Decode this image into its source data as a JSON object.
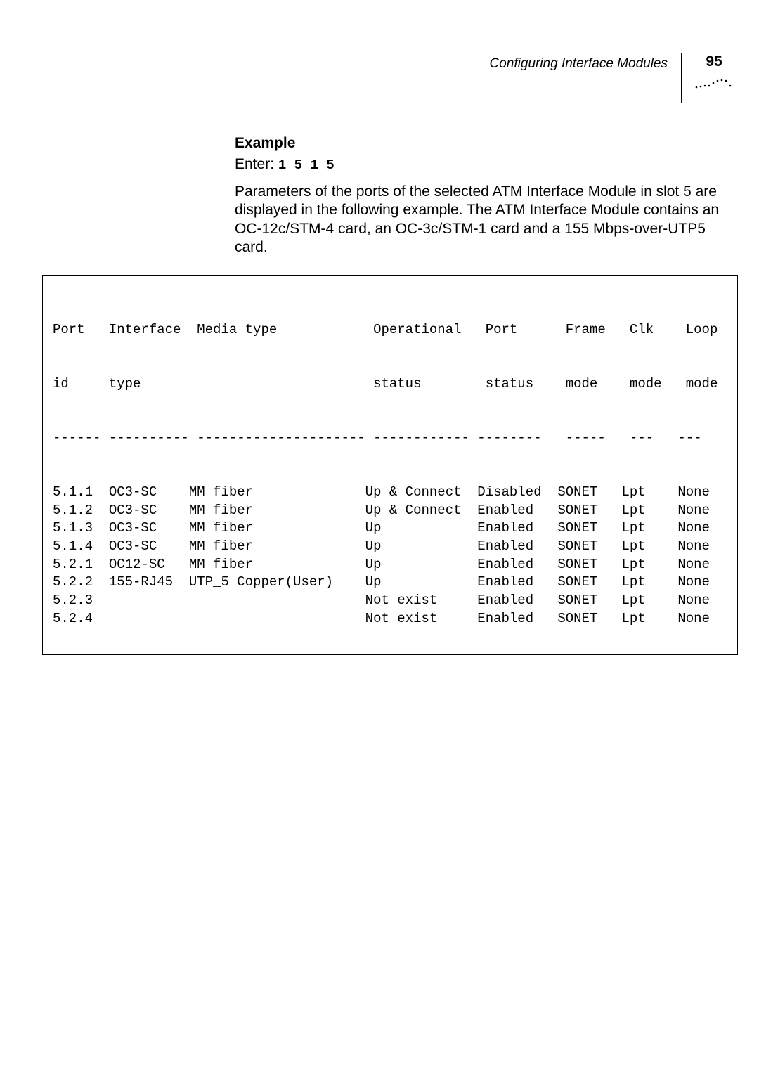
{
  "header": {
    "title": "Configuring Interface Modules",
    "page_number": "95"
  },
  "section": {
    "heading": "Example",
    "enter_label": "Enter: ",
    "enter_code": "1 5 1 5",
    "paragraph": "Parameters of the ports of the selected ATM Interface Module in slot 5 are displayed in the following example. The ATM Interface Module contains an OC-12c/STM-4 card, an OC-3c/STM-1 card and a 155 Mbps-over-UTP5 card."
  },
  "table": {
    "columns": [
      {
        "label1": "Port",
        "label2": "id"
      },
      {
        "label1": "Interface",
        "label2": "type"
      },
      {
        "label1": "Media type",
        "label2": ""
      },
      {
        "label1": "Operational",
        "label2": "status"
      },
      {
        "label1": "Port",
        "label2": "status"
      },
      {
        "label1": "Frame",
        "label2": "mode"
      },
      {
        "label1": "Clk",
        "label2": "mode"
      },
      {
        "label1": "Loop",
        "label2": "mode"
      }
    ],
    "rows": [
      {
        "port_id": "5.1.1",
        "if_type": "OC3-SC",
        "media": "MM fiber",
        "op_status": "Up & Connect",
        "port_status": "Disabled",
        "frame_mode": "SONET",
        "clk_mode": "Lpt",
        "loop_mode": "None"
      },
      {
        "port_id": "5.1.2",
        "if_type": "OC3-SC",
        "media": "MM fiber",
        "op_status": "Up & Connect",
        "port_status": "Enabled",
        "frame_mode": "SONET",
        "clk_mode": "Lpt",
        "loop_mode": "None"
      },
      {
        "port_id": "5.1.3",
        "if_type": "OC3-SC",
        "media": "MM fiber",
        "op_status": "Up",
        "port_status": "Enabled",
        "frame_mode": "SONET",
        "clk_mode": "Lpt",
        "loop_mode": "None"
      },
      {
        "port_id": "5.1.4",
        "if_type": "OC3-SC",
        "media": "MM fiber",
        "op_status": "Up",
        "port_status": "Enabled",
        "frame_mode": "SONET",
        "clk_mode": "Lpt",
        "loop_mode": "None"
      },
      {
        "port_id": "5.2.1",
        "if_type": "OC12-SC",
        "media": "MM fiber",
        "op_status": "Up",
        "port_status": "Enabled",
        "frame_mode": "SONET",
        "clk_mode": "Lpt",
        "loop_mode": "None"
      },
      {
        "port_id": "5.2.2",
        "if_type": "155-RJ45",
        "media": "UTP_5 Copper(User)",
        "op_status": "Up",
        "port_status": "Enabled",
        "frame_mode": "SONET",
        "clk_mode": "Lpt",
        "loop_mode": "None"
      },
      {
        "port_id": "5.2.3",
        "if_type": "",
        "media": "",
        "op_status": "Not exist",
        "port_status": "Enabled",
        "frame_mode": "SONET",
        "clk_mode": "Lpt",
        "loop_mode": "None"
      },
      {
        "port_id": "5.2.4",
        "if_type": "",
        "media": "",
        "op_status": "Not exist",
        "port_status": "Enabled",
        "frame_mode": "SONET",
        "clk_mode": "Lpt",
        "loop_mode": "None"
      }
    ],
    "separator": "------ ---------- --------------------- ------------ --------   -----   ---   ---",
    "col_widths": {
      "port_id": 7,
      "if_type": 10,
      "media": 22,
      "op_status": 14,
      "port_status": 10,
      "frame_mode": 8,
      "clk_mode": 7,
      "loop_mode": 4
    }
  }
}
